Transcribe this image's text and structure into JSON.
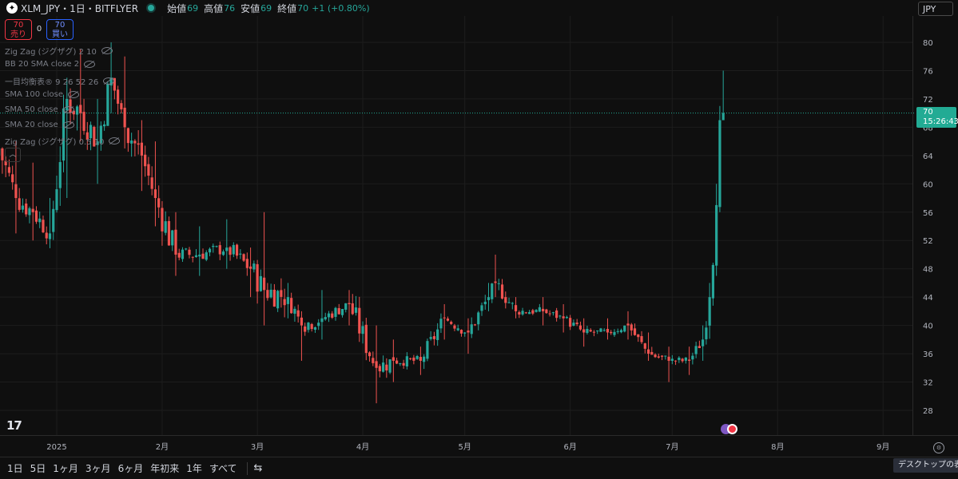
{
  "header": {
    "symbol": "XLM_JPY・1日・BITFLYER",
    "open_label": "始値",
    "open_value": "69",
    "high_label": "高値",
    "high_value": "76",
    "low_label": "安値",
    "low_value": "69",
    "close_label": "終値",
    "close_value": "70",
    "change": "+1 (+0.80%)"
  },
  "currency": "JPY",
  "trade": {
    "sell_price": "70",
    "sell_label": "売り",
    "spread": "0",
    "buy_price": "70",
    "buy_label": "買い"
  },
  "indicators": [
    "Zig Zag (ジグザグ) 2 10",
    "BB 20 SMA close 2",
    "一目均衡表® 9 26 52 26",
    "SMA 100 close",
    "SMA 50 close",
    "SMA 20 close",
    "Zig Zag (ジグザグ) 0.5 10"
  ],
  "price_tag": {
    "price": "70",
    "countdown": "15:26:43"
  },
  "time_ranges": [
    "1日",
    "5日",
    "1ヶ月",
    "3ヶ月",
    "6ヶ月",
    "年初来",
    "1年",
    "すべて"
  ],
  "tooltip": "デスクトップの表示",
  "colors": {
    "up": "#26a69a",
    "down": "#ef5350",
    "background": "#0f0f0f",
    "price_tag": "#22ab94"
  },
  "chart_data": {
    "type": "candlestick",
    "ylim": [
      25,
      81
    ],
    "y_ticks": [
      "28",
      "32",
      "36",
      "40",
      "44",
      "48",
      "52",
      "56",
      "60",
      "64",
      "68",
      "72",
      "76",
      "80"
    ],
    "x_tick_labels": [
      "2025",
      "2月",
      "3月",
      "4月",
      "5月",
      "6月",
      "7月",
      "8月",
      "9月"
    ],
    "x_tick_positions": [
      "2025-01-01",
      "2025-02-01",
      "2025-03-01",
      "2025-04-01",
      "2025-05-01",
      "2025-06-01",
      "2025-07-01",
      "2025-08-01",
      "2025-09-01"
    ],
    "last_price": 70,
    "anchors": [
      {
        "date": "2024-12-15",
        "close": 65,
        "high": 69,
        "low": 49
      },
      {
        "date": "2024-12-20",
        "close": 58,
        "high": 66,
        "low": 53
      },
      {
        "date": "2024-12-25",
        "close": 56,
        "high": 63,
        "low": 52
      },
      {
        "date": "2024-12-30",
        "close": 53,
        "high": 58,
        "low": 51
      },
      {
        "date": "2025-01-04",
        "close": 72,
        "high": 75,
        "low": 58
      },
      {
        "date": "2025-01-08",
        "close": 70,
        "high": 79,
        "low": 66
      },
      {
        "date": "2025-01-13",
        "close": 66,
        "high": 72,
        "low": 60
      },
      {
        "date": "2025-01-17",
        "close": 75,
        "high": 80,
        "low": 70
      },
      {
        "date": "2025-01-21",
        "close": 68,
        "high": 78,
        "low": 65
      },
      {
        "date": "2025-01-26",
        "close": 64,
        "high": 69,
        "low": 59
      },
      {
        "date": "2025-01-30",
        "close": 58,
        "high": 66,
        "low": 54
      },
      {
        "date": "2025-02-05",
        "close": 50,
        "high": 56,
        "low": 47
      },
      {
        "date": "2025-02-12",
        "close": 50,
        "high": 54,
        "low": 47
      },
      {
        "date": "2025-02-20",
        "close": 51,
        "high": 55,
        "low": 48
      },
      {
        "date": "2025-02-27",
        "close": 48,
        "high": 51,
        "low": 44
      },
      {
        "date": "2025-03-03",
        "close": 45,
        "high": 56,
        "low": 40
      },
      {
        "date": "2025-03-10",
        "close": 44,
        "high": 46,
        "low": 41
      },
      {
        "date": "2025-03-14",
        "close": 40,
        "high": 42,
        "low": 35
      },
      {
        "date": "2025-03-20",
        "close": 41,
        "high": 45,
        "low": 38
      },
      {
        "date": "2025-03-28",
        "close": 43,
        "high": 45,
        "low": 40
      },
      {
        "date": "2025-04-05",
        "close": 34,
        "high": 40,
        "low": 29
      },
      {
        "date": "2025-04-10",
        "close": 35,
        "high": 38,
        "low": 32
      },
      {
        "date": "2025-04-18",
        "close": 35,
        "high": 37,
        "low": 33
      },
      {
        "date": "2025-04-25",
        "close": 41,
        "high": 43,
        "low": 38
      },
      {
        "date": "2025-05-02",
        "close": 39,
        "high": 41,
        "low": 36
      },
      {
        "date": "2025-05-08",
        "close": 44,
        "high": 46,
        "low": 42
      },
      {
        "date": "2025-05-10",
        "close": 46,
        "high": 50,
        "low": 44
      },
      {
        "date": "2025-05-16",
        "close": 42,
        "high": 44,
        "low": 41
      },
      {
        "date": "2025-05-24",
        "close": 42,
        "high": 44,
        "low": 40
      },
      {
        "date": "2025-05-30",
        "close": 41,
        "high": 43,
        "low": 39
      },
      {
        "date": "2025-06-05",
        "close": 39,
        "high": 41,
        "low": 37
      },
      {
        "date": "2025-06-12",
        "close": 39,
        "high": 41,
        "low": 38
      },
      {
        "date": "2025-06-18",
        "close": 40,
        "high": 42,
        "low": 38
      },
      {
        "date": "2025-06-24",
        "close": 36,
        "high": 39,
        "low": 35
      },
      {
        "date": "2025-06-30",
        "close": 35,
        "high": 37,
        "low": 32
      },
      {
        "date": "2025-07-06",
        "close": 35,
        "high": 37,
        "low": 33
      },
      {
        "date": "2025-07-10",
        "close": 38,
        "high": 40,
        "low": 35
      },
      {
        "date": "2025-07-12",
        "close": 44,
        "high": 46,
        "low": 41
      },
      {
        "date": "2025-07-14",
        "close": 57,
        "high": 60,
        "low": 47
      },
      {
        "date": "2025-07-15",
        "close": 69,
        "high": 71,
        "low": 56
      },
      {
        "date": "2025-07-16",
        "close": 70,
        "high": 76,
        "low": 69
      }
    ]
  }
}
